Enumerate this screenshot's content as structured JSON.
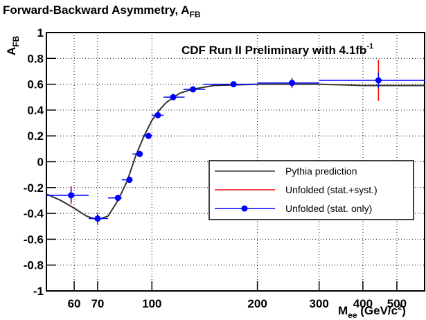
{
  "chart_data": {
    "type": "scatter",
    "title": [
      "Forward-Backward Asymmetry, A",
      "FB"
    ],
    "y_label": [
      "A",
      "FB"
    ],
    "x_label": [
      "M",
      "ee",
      " (GeV/c",
      "2",
      ")"
    ],
    "annotation": [
      "CDF Run II Preliminary with 4.1fb",
      "-1"
    ],
    "xscale": "log",
    "xlim": [
      50,
      600
    ],
    "ylim": [
      -1,
      1
    ],
    "xticks": [
      60,
      70,
      100,
      200,
      300,
      400,
      500
    ],
    "yticks": [
      1,
      0.8,
      0.6,
      0.4,
      0.2,
      0,
      -0.2,
      -0.4,
      -0.6,
      -0.8,
      -1
    ],
    "grid": true,
    "legend": "right",
    "curve": {
      "name": "Pythia prediction",
      "color": "#333333",
      "x": [
        50,
        55,
        60,
        65,
        70,
        75,
        80,
        85,
        90,
        95,
        100,
        105,
        110,
        120,
        130,
        150,
        200,
        300,
        400,
        600
      ],
      "values": [
        -0.25,
        -0.3,
        -0.36,
        -0.42,
        -0.45,
        -0.42,
        -0.3,
        -0.15,
        0.05,
        0.2,
        0.32,
        0.4,
        0.46,
        0.53,
        0.56,
        0.59,
        0.6,
        0.6,
        0.59,
        0.59
      ]
    },
    "series": [
      {
        "name": "Unfolded (stat.+syst.)",
        "color": "#ff0000",
        "x": [
          58.8,
          70,
          80,
          86.3,
          92.3,
          97.8,
          104,
          115,
          131,
          171,
          251,
          443
        ],
        "values": [
          -0.26,
          -0.44,
          -0.28,
          -0.14,
          0.06,
          0.2,
          0.36,
          0.5,
          0.56,
          0.6,
          0.61,
          0.63
        ],
        "yerr": [
          0.07,
          0.05,
          0.025,
          0.025,
          0.025,
          0.025,
          0.025,
          0.025,
          0.02,
          0.02,
          0.04,
          0.16
        ]
      },
      {
        "name": "Unfolded (stat. only)",
        "color": "#0000ff",
        "x": [
          58.8,
          70,
          80,
          86.3,
          92.3,
          97.8,
          104,
          115,
          131,
          171,
          251,
          443
        ],
        "xlow": [
          50,
          66,
          75,
          82,
          88,
          94,
          100,
          108,
          123,
          140,
          200,
          300
        ],
        "xhigh": [
          66,
          75,
          82,
          88,
          94,
          100,
          108,
          124,
          142,
          200,
          300,
          600
        ],
        "values": [
          -0.26,
          -0.44,
          -0.28,
          -0.14,
          0.06,
          0.2,
          0.36,
          0.5,
          0.56,
          0.6,
          0.61,
          0.63
        ],
        "yerr": [
          0.05,
          0.03,
          0.02,
          0.02,
          0.02,
          0.02,
          0.02,
          0.02,
          0.015,
          0.015,
          0.03,
          0.06
        ]
      }
    ]
  }
}
